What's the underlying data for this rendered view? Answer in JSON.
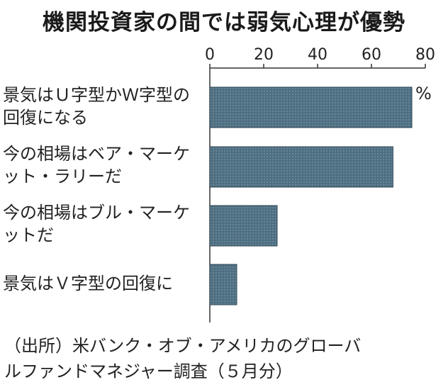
{
  "chart_data": {
    "type": "bar",
    "orientation": "horizontal",
    "title": "機関投資家の間では弱気心理が優勢",
    "categories": [
      "景気はＵ字型かＷ字型の\n回復になる",
      "今の相場はベア・マーケ\nット・ラリーだ",
      "今の相場はブル・マーケ\nットだ",
      "景気はＶ字型の回復に"
    ],
    "values": [
      75,
      68,
      25,
      10
    ],
    "unit": "%",
    "xlim": [
      0,
      80
    ],
    "xticks": [
      "0",
      "20",
      "40",
      "60",
      "80"
    ],
    "bar_color": "#4e6f82",
    "grid": false,
    "source": "（出所）米バンク・オブ・アメリカのグローバ\nルファンドマネジャー調査（５月分）"
  }
}
